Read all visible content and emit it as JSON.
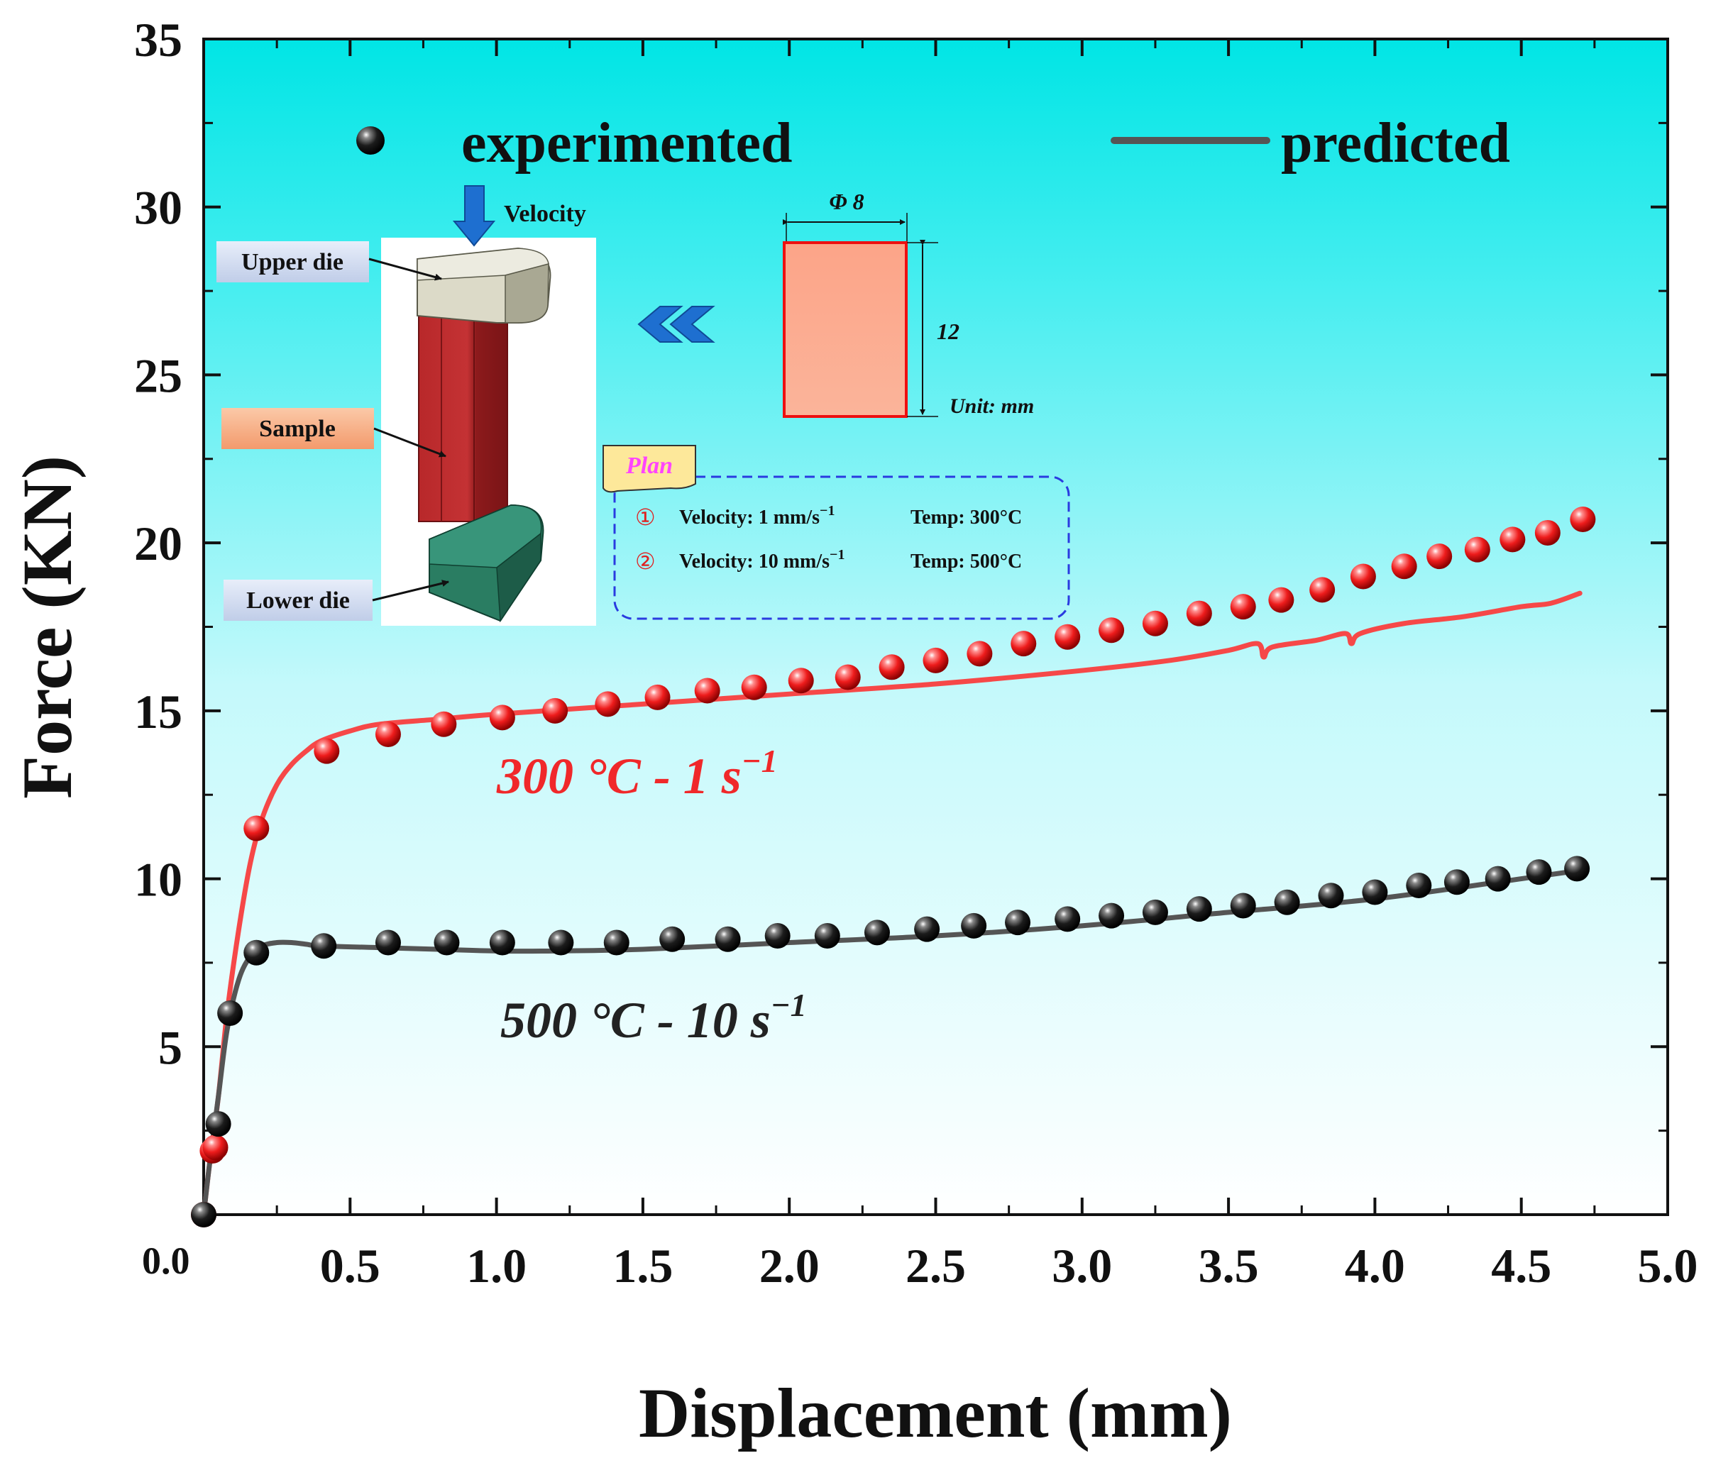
{
  "chart_data": {
    "type": "line",
    "title": "",
    "xlabel": "Displacement (mm)",
    "ylabel": "Force (KN)",
    "xlim": [
      0.0,
      5.0
    ],
    "ylim": [
      0,
      35
    ],
    "x_ticks": [
      "0.0",
      "0.5",
      "1.0",
      "1.5",
      "2.0",
      "2.5",
      "3.0",
      "3.5",
      "4.0",
      "4.5",
      "5.0"
    ],
    "y_ticks": [
      "5",
      "10",
      "15",
      "20",
      "25",
      "30",
      "35"
    ],
    "legend": {
      "experimented": "experimented",
      "predicted": "predicted",
      "position": "top"
    },
    "series": [
      {
        "name": "300 °C - 1 s",
        "label_text": "300 °C - 1 s",
        "label_sup": "−1",
        "color": "#f0282a",
        "experimented": {
          "x": [
            0.0,
            0.03,
            0.04,
            0.18,
            0.42,
            0.63,
            0.82,
            1.02,
            1.2,
            1.38,
            1.55,
            1.72,
            1.88,
            2.04,
            2.2,
            2.35,
            2.5,
            2.65,
            2.8,
            2.95,
            3.1,
            3.25,
            3.4,
            3.55,
            3.68,
            3.82,
            3.96,
            4.1,
            4.22,
            4.35,
            4.47,
            4.59,
            4.71
          ],
          "y": [
            0.0,
            1.9,
            2.0,
            11.5,
            13.8,
            14.3,
            14.6,
            14.8,
            15.0,
            15.2,
            15.4,
            15.6,
            15.7,
            15.9,
            16.0,
            16.3,
            16.5,
            16.7,
            17.0,
            17.2,
            17.4,
            17.6,
            17.9,
            18.1,
            18.3,
            18.6,
            19.0,
            19.3,
            19.6,
            19.8,
            20.1,
            20.3,
            20.7
          ]
        },
        "predicted": {
          "x": [
            0.0,
            0.02,
            0.05,
            0.08,
            0.12,
            0.16,
            0.2,
            0.25,
            0.3,
            0.35,
            0.4,
            0.5,
            0.6,
            0.8,
            1.0,
            1.5,
            2.0,
            2.5,
            3.0,
            3.3,
            3.5,
            3.6,
            3.62,
            3.65,
            3.8,
            3.9,
            3.92,
            3.95,
            4.1,
            4.3,
            4.5,
            4.6,
            4.7
          ],
          "y": [
            0.0,
            1.5,
            3.5,
            6.0,
            8.5,
            10.5,
            11.8,
            12.8,
            13.4,
            13.8,
            14.1,
            14.4,
            14.6,
            14.75,
            14.9,
            15.2,
            15.5,
            15.8,
            16.2,
            16.5,
            16.8,
            17.0,
            16.6,
            16.9,
            17.1,
            17.3,
            17.0,
            17.3,
            17.6,
            17.8,
            18.1,
            18.2,
            18.5
          ]
        }
      },
      {
        "name": "500 °C - 10 s",
        "label_text": "500 °C - 10 s",
        "label_sup": "−1",
        "color": "#555555",
        "experimented": {
          "x": [
            0.0,
            0.05,
            0.09,
            0.18,
            0.41,
            0.63,
            0.83,
            1.02,
            1.22,
            1.41,
            1.6,
            1.79,
            1.96,
            2.13,
            2.3,
            2.47,
            2.63,
            2.78,
            2.95,
            3.1,
            3.25,
            3.4,
            3.55,
            3.7,
            3.85,
            4.0,
            4.15,
            4.28,
            4.42,
            4.56,
            4.69
          ],
          "y": [
            0.0,
            2.7,
            6.0,
            7.8,
            8.0,
            8.1,
            8.1,
            8.1,
            8.1,
            8.1,
            8.2,
            8.2,
            8.3,
            8.3,
            8.4,
            8.5,
            8.6,
            8.7,
            8.8,
            8.9,
            9.0,
            9.1,
            9.2,
            9.3,
            9.5,
            9.6,
            9.8,
            9.9,
            10.0,
            10.2,
            10.3
          ]
        },
        "predicted": {
          "x": [
            0.0,
            0.02,
            0.05,
            0.08,
            0.12,
            0.16,
            0.2,
            0.25,
            0.3,
            0.35,
            0.4,
            0.6,
            0.8,
            1.0,
            1.2,
            1.5,
            2.0,
            2.5,
            3.0,
            3.5,
            4.0,
            4.5,
            4.7
          ],
          "y": [
            0.0,
            1.5,
            3.5,
            5.5,
            7.0,
            7.7,
            8.0,
            8.1,
            8.1,
            8.05,
            8.0,
            7.95,
            7.9,
            7.85,
            7.85,
            7.9,
            8.1,
            8.3,
            8.6,
            9.0,
            9.4,
            10.0,
            10.25
          ]
        }
      }
    ]
  },
  "inset": {
    "velocity_label": "Velocity",
    "upper_die": "Upper die",
    "sample": "Sample",
    "lower_die": "Lower die",
    "diameter": "Φ 8",
    "height": "12",
    "unit": "Unit: mm",
    "plan_title": "Plan",
    "plan_rows": [
      {
        "num": "①",
        "velocity": "Velocity: 1 mm/s",
        "temp": "Temp: 300°C"
      },
      {
        "num": "②",
        "velocity": "Velocity: 10 mm/s",
        "temp": "Temp: 500°C"
      }
    ],
    "plan_sup": "−1"
  }
}
